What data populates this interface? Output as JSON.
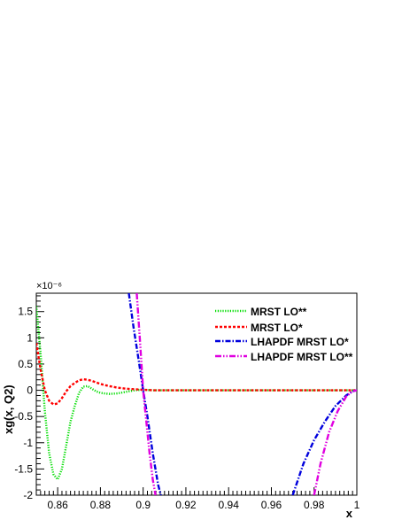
{
  "chart_data": {
    "type": "line",
    "title": "",
    "xlabel": "x",
    "ylabel": "xg(x, Q2)",
    "y_exponent_label": "×10⁻⁶",
    "xlim": [
      0.85,
      1.0
    ],
    "ylim": [
      -2.0,
      1.85
    ],
    "x_ticks": [
      0.86,
      0.88,
      0.9,
      0.92,
      0.94,
      0.96,
      0.98,
      1
    ],
    "x_tick_labels": [
      "0.86",
      "0.88",
      "0.9",
      "0.92",
      "0.94",
      "0.96",
      "0.98",
      "1"
    ],
    "y_ticks": [
      -2,
      -1.5,
      -1,
      -0.5,
      0,
      0.5,
      1,
      1.5
    ],
    "y_tick_labels": [
      "-2",
      "-1.5",
      "-1",
      "-0.5",
      "0",
      "0.5",
      "1",
      "1.5"
    ],
    "legend_position": "top-right",
    "grid": false,
    "series": [
      {
        "name": "MRST LO**",
        "color": "#00dd00",
        "dash": "dotted",
        "x": [
          0.85,
          0.852,
          0.854,
          0.856,
          0.858,
          0.86,
          0.862,
          0.864,
          0.866,
          0.868,
          0.87,
          0.872,
          0.874,
          0.876,
          0.878,
          0.88,
          0.884,
          0.888,
          0.892,
          0.896,
          0.9,
          0.905,
          0.91,
          0.92,
          0.94,
          0.96,
          0.98,
          1.0
        ],
        "y": [
          1.6,
          0.7,
          -0.4,
          -1.2,
          -1.6,
          -1.7,
          -1.5,
          -1.05,
          -0.6,
          -0.3,
          -0.05,
          0.07,
          0.08,
          0.03,
          -0.02,
          -0.05,
          -0.07,
          -0.06,
          -0.03,
          0.0,
          0.01,
          0.0,
          0.0,
          0.0,
          0.0,
          0.0,
          0.0,
          0.0
        ]
      },
      {
        "name": "MRST LO*",
        "color": "#ff0000",
        "dash": "dashed",
        "x": [
          0.85,
          0.852,
          0.854,
          0.856,
          0.858,
          0.86,
          0.862,
          0.864,
          0.866,
          0.868,
          0.87,
          0.872,
          0.874,
          0.876,
          0.878,
          0.88,
          0.884,
          0.888,
          0.892,
          0.896,
          0.9,
          0.905,
          0.91,
          0.92,
          0.94,
          0.96,
          0.98,
          1.0
        ],
        "y": [
          0.9,
          0.4,
          0.0,
          -0.2,
          -0.27,
          -0.25,
          -0.15,
          -0.02,
          0.08,
          0.14,
          0.19,
          0.21,
          0.2,
          0.18,
          0.15,
          0.12,
          0.08,
          0.05,
          0.03,
          0.02,
          0.01,
          0.0,
          0.0,
          0.0,
          0.0,
          0.0,
          0.0,
          0.0
        ]
      },
      {
        "name": "LHAPDF MRST LO*",
        "color": "#0000dd",
        "dash": "dashdot",
        "x": [
          0.8933,
          0.8955,
          0.898,
          0.9,
          0.902,
          0.9045,
          0.907,
          0.9083,
          null,
          0.97,
          0.975,
          0.98,
          0.985,
          0.99,
          0.995,
          0.998,
          1.0
        ],
        "y": [
          1.85,
          1.2,
          0.55,
          0.0,
          -0.5,
          -1.2,
          -1.8,
          -2.0,
          null,
          -2.0,
          -1.4,
          -0.95,
          -0.6,
          -0.3,
          -0.1,
          -0.02,
          0.0
        ]
      },
      {
        "name": "LHAPDF MRST LO**",
        "color": "#e000e0",
        "dash": "dashdotdot",
        "x": [
          0.897,
          0.8985,
          0.9,
          0.9015,
          0.903,
          0.9045,
          0.9058,
          null,
          0.98,
          0.983,
          0.987,
          0.991,
          0.995,
          0.998,
          1.0
        ],
        "y": [
          1.85,
          0.95,
          0.0,
          -0.6,
          -1.2,
          -1.7,
          -2.0,
          null,
          -2.0,
          -1.4,
          -0.8,
          -0.4,
          -0.12,
          -0.02,
          0.0
        ]
      }
    ]
  }
}
